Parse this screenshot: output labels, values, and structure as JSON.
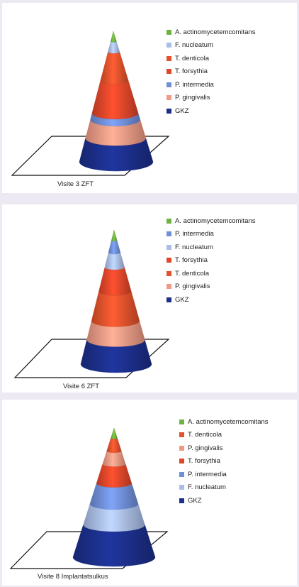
{
  "colors": {
    "A. actinomycetemcomitans": "#6fb33f",
    "F. nucleatum": "#a9bde8",
    "T. denticola": "#e2522c",
    "T. forsythia": "#e0462a",
    "P. intermedia": "#6f8fd8",
    "P. gingivalis": "#f09a84",
    "GKZ": "#1c2f8a"
  },
  "chart_data": [
    {
      "type": "cone",
      "title": "Visite 3 ZFT",
      "legend_position": "top-right",
      "legend": [
        "A. actinomycetemcomitans",
        "F. nucleatum",
        "T. denticola",
        "T. forsythia",
        "P. intermedia",
        "P. gingivalis",
        "GKZ"
      ],
      "series": [
        {
          "name": "A. actinomycetemcomitans",
          "value": 8
        },
        {
          "name": "F. nucleatum",
          "value": 8
        },
        {
          "name": "T. denticola",
          "value": 22
        },
        {
          "name": "T. forsythia",
          "value": 25
        },
        {
          "name": "P. intermedia",
          "value": 5
        },
        {
          "name": "P. gingivalis",
          "value": 14
        },
        {
          "name": "GKZ",
          "value": 18
        }
      ]
    },
    {
      "type": "cone",
      "title": "Visite 6 ZFT",
      "legend_position": "top-right",
      "legend": [
        "A. actinomycetemcomitans",
        "P. intermedia",
        "F. nucleatum",
        "T. forsythia",
        "T. denticola",
        "P. gingivalis",
        "GKZ"
      ],
      "series": [
        {
          "name": "A. actinomycetemcomitans",
          "value": 8
        },
        {
          "name": "P. intermedia",
          "value": 9
        },
        {
          "name": "F. nucleatum",
          "value": 11
        },
        {
          "name": "T. forsythia",
          "value": 18
        },
        {
          "name": "T. denticola",
          "value": 22
        },
        {
          "name": "P. gingivalis",
          "value": 14
        },
        {
          "name": "GKZ",
          "value": 18
        }
      ]
    },
    {
      "type": "cone",
      "title": "Visite 8 Implantatsulkus",
      "legend_position": "top-right",
      "legend": [
        "A. actinomycetemcomitans",
        "T. denticola",
        "P. gingivalis",
        "T. forsythia",
        "P. intermedia",
        "F. nucleatum",
        "GKZ"
      ],
      "series": [
        {
          "name": "A. actinomycetemcomitans",
          "value": 8
        },
        {
          "name": "T. denticola",
          "value": 10
        },
        {
          "name": "P. gingivalis",
          "value": 10
        },
        {
          "name": "T. forsythia",
          "value": 15
        },
        {
          "name": "P. intermedia",
          "value": 16
        },
        {
          "name": "F. nucleatum",
          "value": 16
        },
        {
          "name": "GKZ",
          "value": 25
        }
      ]
    }
  ]
}
